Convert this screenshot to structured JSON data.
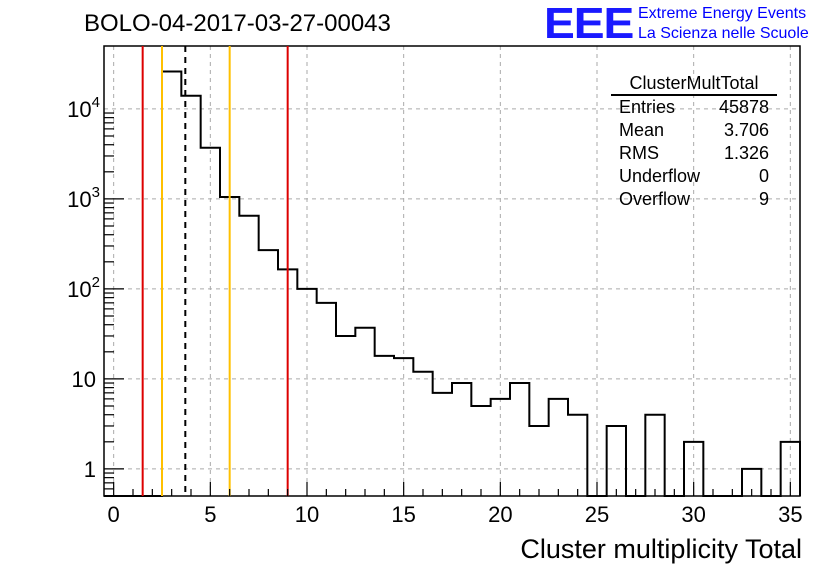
{
  "title": "BOLO-04-2017-03-27-00043",
  "logo": {
    "mark": "EEE",
    "line1": "Extreme Energy Events",
    "line2": "La Scienza nelle Scuole"
  },
  "stats_box": {
    "title": "ClusterMultTotal",
    "rows": [
      {
        "label": "Entries",
        "value": "45878"
      },
      {
        "label": "Mean",
        "value": "3.706"
      },
      {
        "label": "RMS",
        "value": "1.326"
      },
      {
        "label": "Underflow",
        "value": "0"
      },
      {
        "label": "Overflow",
        "value": "9"
      }
    ]
  },
  "colors": {
    "histogram": "#000000",
    "red_lines": "#dd0000",
    "yellow_lines": "#ffc000",
    "grid": "#aaaaaa"
  },
  "chart_data": {
    "type": "histogram",
    "title": "BOLO-04-2017-03-27-00043",
    "xlabel": "Cluster multiplicity Total",
    "ylabel": "",
    "xlim": [
      -0.5,
      35.5
    ],
    "ylim": [
      0.5,
      50000
    ],
    "yscale": "log",
    "grid": true,
    "bin_width": 1,
    "bin_lows": [
      -0.5,
      0.5,
      1.5,
      2.5,
      3.5,
      4.5,
      5.5,
      6.5,
      7.5,
      8.5,
      9.5,
      10.5,
      11.5,
      12.5,
      13.5,
      14.5,
      15.5,
      16.5,
      17.5,
      18.5,
      19.5,
      20.5,
      21.5,
      22.5,
      23.5,
      24.5,
      25.5,
      26.5,
      27.5,
      28.5,
      29.5,
      30.5,
      31.5,
      32.5,
      33.5,
      34.5
    ],
    "counts": [
      0,
      0,
      0,
      26000,
      14000,
      3700,
      1050,
      650,
      270,
      165,
      100,
      70,
      30,
      37,
      18,
      17,
      12,
      7,
      9,
      5,
      6,
      9,
      3,
      6,
      4,
      0,
      3,
      0,
      4,
      0,
      2,
      0,
      0,
      1,
      0,
      2
    ],
    "x_ticks": [
      "0",
      "5",
      "10",
      "15",
      "20",
      "25",
      "30",
      "35"
    ],
    "x_tick_values": [
      0,
      5,
      10,
      15,
      20,
      25,
      30,
      35
    ],
    "y_ticks": [
      "1",
      "10",
      "10^2",
      "10^3",
      "10^4"
    ],
    "y_tick_values": [
      1,
      10,
      100,
      1000,
      10000
    ],
    "vertical_lines": [
      {
        "x": 1.5,
        "color": "red",
        "style": "solid"
      },
      {
        "x": 2.5,
        "color": "yellow",
        "style": "solid"
      },
      {
        "x": 3.706,
        "color": "black",
        "style": "dashed"
      },
      {
        "x": 6.0,
        "color": "yellow",
        "style": "solid"
      },
      {
        "x": 9.0,
        "color": "red",
        "style": "solid"
      }
    ]
  }
}
